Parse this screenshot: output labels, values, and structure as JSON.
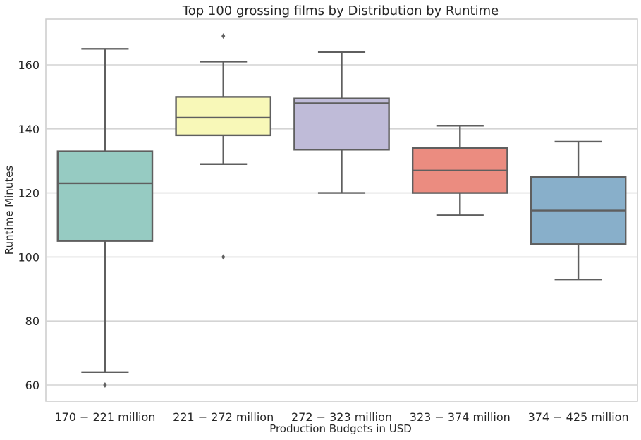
{
  "chart_data": {
    "type": "box",
    "title": "Top 100 grossing films by Distribution by Runtime",
    "xlabel": "Production Budgets in USD",
    "ylabel": "Runtime Minutes",
    "ylim": [
      55,
      175
    ],
    "yticks": [
      60,
      80,
      100,
      120,
      140,
      160
    ],
    "grid": true,
    "categories": [
      "170 − 221 million",
      "221 − 272 million",
      "272 − 323 million",
      "323 − 374 million",
      "374 − 425 million"
    ],
    "boxes": [
      {
        "category": "170 − 221 million",
        "whisker_low": 64,
        "q1": 105,
        "median": 123,
        "q3": 133,
        "whisker_high": 165,
        "outliers": [
          60
        ],
        "color": "#96cbc2"
      },
      {
        "category": "221 − 272 million",
        "whisker_low": 129,
        "q1": 138,
        "median": 143.5,
        "q3": 150,
        "whisker_high": 161,
        "outliers": [
          100,
          169
        ],
        "color": "#f8f8b8"
      },
      {
        "category": "272 − 323 million",
        "whisker_low": 120,
        "q1": 133.5,
        "median": 148,
        "q3": 149.5,
        "whisker_high": 164,
        "outliers": [],
        "color": "#bfbbd8"
      },
      {
        "category": "323 − 374 million",
        "whisker_low": 113,
        "q1": 120,
        "median": 127,
        "q3": 134,
        "whisker_high": 141,
        "outliers": [],
        "color": "#eb8c80"
      },
      {
        "category": "374 − 425 million",
        "whisker_low": 93,
        "q1": 104,
        "median": 114.5,
        "q3": 125,
        "whisker_high": 136,
        "outliers": [],
        "color": "#88afca"
      }
    ],
    "colors": {
      "line": "#5f5f5f",
      "grid": "#d4d4d4",
      "frame": "#cccccc",
      "text": "#262626"
    }
  }
}
